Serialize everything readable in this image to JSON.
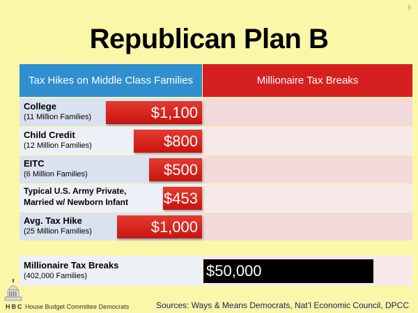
{
  "slide_number": "5",
  "title": "Republican Plan B",
  "table": {
    "left_header": "Tax Hikes on Middle Class Families",
    "right_header": "Millionaire Tax Breaks",
    "rows": [
      {
        "label": "College",
        "sub": "(11 Million Families)",
        "amount": "$1,100"
      },
      {
        "label": "Child Credit",
        "sub": "(12 Million Families)",
        "amount": "$800"
      },
      {
        "label": "EITC",
        "sub": "(6 Million Families)",
        "amount": "$500"
      },
      {
        "label": "Typical U.S. Army Private,",
        "sub": "Married w/ Newborn Infant",
        "amount": "$453"
      },
      {
        "label": "Avg. Tax Hike",
        "sub": "(25 Million Families)",
        "amount": "$1,000"
      }
    ],
    "millionaire_row": {
      "label": "Millionaire Tax Breaks",
      "sub": "(402,000 Families)",
      "amount": "$50,000"
    }
  },
  "footer": {
    "org_initials": "HBC",
    "org_name": "House Budget Committee Democrats",
    "sources": "Sources: Ways & Means Democrats, Nat’l Economic Council, DPCC"
  },
  "colors": {
    "background": "#fbf7a8",
    "left_header": "#2f8fcf",
    "right_header": "#d6201f",
    "amount_bar": "#d6201f",
    "millionaire_bar": "#000000"
  }
}
